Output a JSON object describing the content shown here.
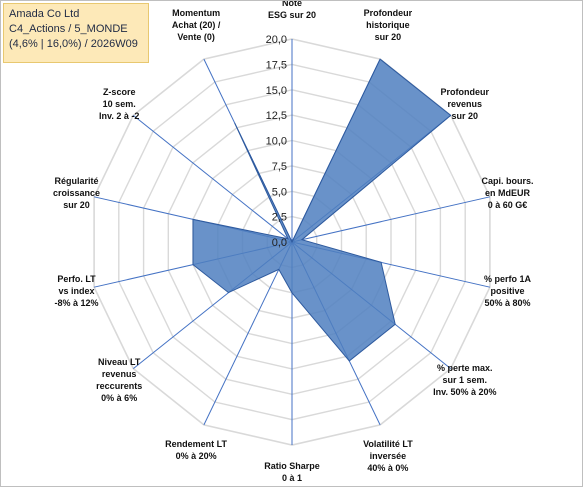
{
  "infobox": {
    "line1": "Amada Co Ltd",
    "line2": "C4_Actions / 5_MONDE",
    "line3": "(4,6% | 16,0%) / 2026W09"
  },
  "colors": {
    "grid": "#d9d9d9",
    "axis": "#4472c4",
    "series_fill": "#4f7fc0",
    "series_stroke": "#2e5a9e"
  },
  "chart_data": {
    "type": "radar",
    "rlim": [
      0,
      20
    ],
    "grid": true,
    "tick_labels": [
      "0,0",
      "2,5",
      "5,0",
      "7,5",
      "10,0",
      "12,5",
      "15,0",
      "17,5",
      "20,0"
    ],
    "categories": [
      [
        "Note",
        "ESG sur 20"
      ],
      [
        "Profondeur",
        "historique",
        "sur 20"
      ],
      [
        "Profondeur",
        "revenus",
        "sur 20"
      ],
      [
        "Capi. bours.",
        "en MdEUR",
        "0 à 60 G€"
      ],
      [
        "% perfo 1A",
        "positive",
        "50% à 80%"
      ],
      [
        "% perte max.",
        "sur 1 sem.",
        "Inv. 50% à 20%"
      ],
      [
        "Volatilité LT",
        "inversée",
        "40% à 0%"
      ],
      [
        "Ratio Sharpe",
        "0 à 1"
      ],
      [
        "Rendement LT",
        "0% à 20%"
      ],
      [
        "Niveau LT",
        "revenus",
        "reccurents",
        "0% à 6%"
      ],
      [
        "Perfo. LT",
        "vs index",
        "-8% à 12%"
      ],
      [
        "Régularité",
        "croissance",
        "sur 20"
      ],
      [
        "Z-score",
        "10 sem.",
        "Inv. 2 à -2"
      ],
      [
        "Momentum",
        "Achat (20) /",
        "Vente (0)"
      ]
    ],
    "values": [
      0,
      20,
      20,
      1,
      9,
      13,
      13,
      5,
      3,
      8,
      10,
      10,
      0.5,
      13
    ]
  }
}
